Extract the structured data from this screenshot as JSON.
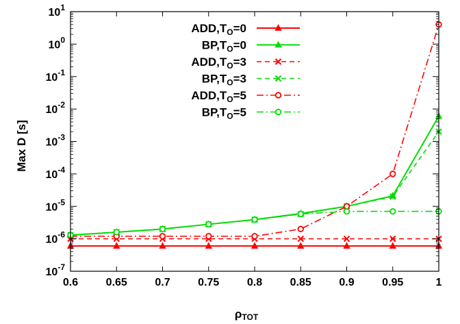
{
  "chart_data": {
    "type": "line",
    "xlabel": "ρ",
    "xlabel_sub": "TOT",
    "ylabel": "Max D [s]",
    "xlim": [
      0.6,
      1.0
    ],
    "ylim_exp": [
      -7,
      1
    ],
    "y_scale": "log",
    "grid": false,
    "legend_position": "top-center",
    "x_ticks": [
      "0.6",
      "0.65",
      "0.7",
      "0.75",
      "0.8",
      "0.85",
      "0.9",
      "0.95",
      "1"
    ],
    "x_tick_values": [
      0.6,
      0.65,
      0.7,
      0.75,
      0.8,
      0.85,
      0.9,
      0.95,
      1.0
    ],
    "y_tick_exponents": [
      "-7",
      "-6",
      "-5",
      "-4",
      "-3",
      "-2",
      "-1",
      "0",
      "1"
    ],
    "y_tick_base": "10",
    "x": [
      0.6,
      0.65,
      0.7,
      0.75,
      0.8,
      0.85,
      0.9,
      0.95,
      1.0
    ],
    "series": [
      {
        "label_main": "ADD,T",
        "label_sub": "O",
        "label_tail": "=0",
        "color": "#ff0000",
        "dash": "solid",
        "marker": "triangle",
        "values": [
          6e-07,
          6e-07,
          6e-07,
          6e-07,
          6e-07,
          6e-07,
          6e-07,
          6e-07,
          6e-07
        ]
      },
      {
        "label_main": "BP,T",
        "label_sub": "O",
        "label_tail": "=0",
        "color": "#00dd00",
        "dash": "solid",
        "marker": "triangle",
        "values": [
          1.3e-06,
          1.6e-06,
          2e-06,
          2.8e-06,
          3.9e-06,
          6e-06,
          1e-05,
          2.1e-05,
          0.006
        ]
      },
      {
        "label_main": "ADD,T",
        "label_sub": "O",
        "label_tail": "=3",
        "color": "#ff0000",
        "dash": "dashed",
        "marker": "x",
        "values": [
          1e-06,
          1e-06,
          1e-06,
          1e-06,
          1e-06,
          1e-06,
          1e-06,
          1e-06,
          1e-06
        ]
      },
      {
        "label_main": "BP,T",
        "label_sub": "O",
        "label_tail": "=3",
        "color": "#00dd00",
        "dash": "dashed",
        "marker": "x",
        "values": [
          1.3e-06,
          1.6e-06,
          2e-06,
          2.8e-06,
          3.9e-06,
          5.8e-06,
          1e-05,
          2e-05,
          0.002
        ]
      },
      {
        "label_main": "ADD,T",
        "label_sub": "O",
        "label_tail": "=5",
        "color": "#ff0000",
        "dash": "dashdot",
        "marker": "circle",
        "values": [
          1.2e-06,
          1.2e-06,
          1.2e-06,
          1.2e-06,
          1.2e-06,
          2e-06,
          1e-05,
          0.0001,
          4.0
        ]
      },
      {
        "label_main": "BP,T",
        "label_sub": "O",
        "label_tail": "=5",
        "color": "#00dd00",
        "dash": "dashdot",
        "marker": "circle",
        "values": [
          1.3e-06,
          1.6e-06,
          2e-06,
          2.8e-06,
          3.9e-06,
          5.8e-06,
          7e-06,
          7e-06,
          7e-06
        ]
      }
    ]
  }
}
